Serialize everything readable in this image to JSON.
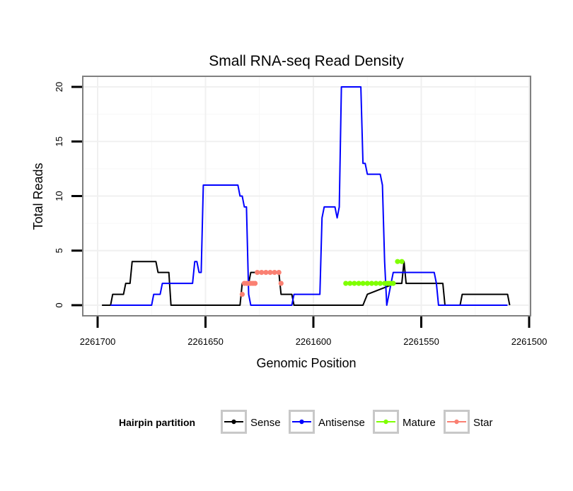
{
  "chart_data": {
    "type": "line",
    "title": "Small RNA-seq Read Density",
    "xlabel": "Genomic Position",
    "ylabel": "Total Reads",
    "xlim": [
      2261700,
      2261500
    ],
    "ylim": [
      0,
      20
    ],
    "x_reversed": true,
    "x_ticks": [
      2261700,
      2261650,
      2261600,
      2261550,
      2261500
    ],
    "x_tick_labels": [
      "2261700",
      "2261650",
      "2261600",
      "2261550",
      "2261500"
    ],
    "y_ticks": [
      0,
      5,
      10,
      15,
      20
    ],
    "y_tick_labels": [
      "0",
      "5",
      "10",
      "15",
      "20"
    ],
    "grid": true,
    "legend": {
      "title": "Hairpin partition",
      "position": "bottom",
      "entries": [
        {
          "name": "Sense",
          "color": "#000000"
        },
        {
          "name": "Antisense",
          "color": "#0000ff"
        },
        {
          "name": "Mature",
          "color": "#7fff00"
        },
        {
          "name": "Star",
          "color": "#fa8072"
        }
      ]
    },
    "series": [
      {
        "name": "Sense",
        "color": "#000000",
        "style": "line",
        "points": [
          [
            2261698,
            0
          ],
          [
            2261694,
            0
          ],
          [
            2261693,
            1
          ],
          [
            2261688,
            1
          ],
          [
            2261687,
            2
          ],
          [
            2261685,
            2
          ],
          [
            2261684,
            4
          ],
          [
            2261673,
            4
          ],
          [
            2261672,
            3
          ],
          [
            2261667,
            3
          ],
          [
            2261666,
            0
          ],
          [
            2261634,
            0
          ],
          [
            2261633,
            2
          ],
          [
            2261630,
            2
          ],
          [
            2261629,
            3
          ],
          [
            2261616,
            3
          ],
          [
            2261615,
            1
          ],
          [
            2261610,
            1
          ],
          [
            2261609,
            0
          ],
          [
            2261577,
            0
          ],
          [
            2261575,
            1
          ],
          [
            2261562,
            2
          ],
          [
            2261559,
            2
          ],
          [
            2261558,
            4
          ],
          [
            2261557,
            2
          ],
          [
            2261540,
            2
          ],
          [
            2261539,
            0
          ],
          [
            2261532,
            0
          ],
          [
            2261531,
            1
          ],
          [
            2261510,
            1
          ],
          [
            2261509,
            0
          ]
        ]
      },
      {
        "name": "Antisense",
        "color": "#0000ff",
        "style": "line",
        "points": [
          [
            2261694,
            0
          ],
          [
            2261675,
            0
          ],
          [
            2261674,
            1
          ],
          [
            2261671,
            1
          ],
          [
            2261670,
            2
          ],
          [
            2261656,
            2
          ],
          [
            2261655,
            4
          ],
          [
            2261654,
            4
          ],
          [
            2261653,
            3
          ],
          [
            2261652,
            3
          ],
          [
            2261651,
            11
          ],
          [
            2261635,
            11
          ],
          [
            2261634,
            10
          ],
          [
            2261633,
            10
          ],
          [
            2261632,
            9
          ],
          [
            2261631,
            9
          ],
          [
            2261630,
            1
          ],
          [
            2261629,
            0
          ],
          [
            2261610,
            0
          ],
          [
            2261609,
            1
          ],
          [
            2261597,
            1
          ],
          [
            2261596,
            8
          ],
          [
            2261595,
            9
          ],
          [
            2261590,
            9
          ],
          [
            2261589,
            8
          ],
          [
            2261588,
            9
          ],
          [
            2261587,
            20
          ],
          [
            2261578,
            20
          ],
          [
            2261577,
            13
          ],
          [
            2261576,
            13
          ],
          [
            2261575,
            12
          ],
          [
            2261569,
            12
          ],
          [
            2261568,
            11
          ],
          [
            2261567,
            4
          ],
          [
            2261566,
            0
          ],
          [
            2261565,
            1
          ],
          [
            2261564,
            2
          ],
          [
            2261563,
            3
          ],
          [
            2261544,
            3
          ],
          [
            2261543,
            2
          ],
          [
            2261542,
            0
          ],
          [
            2261510,
            0
          ]
        ]
      },
      {
        "name": "Mature",
        "color": "#7fff00",
        "style": "points",
        "points": [
          [
            2261585,
            2
          ],
          [
            2261583,
            2
          ],
          [
            2261581,
            2
          ],
          [
            2261579,
            2
          ],
          [
            2261577,
            2
          ],
          [
            2261575,
            2
          ],
          [
            2261573,
            2
          ],
          [
            2261571,
            2
          ],
          [
            2261569,
            2
          ],
          [
            2261567,
            2
          ],
          [
            2261566,
            2
          ],
          [
            2261565,
            2
          ],
          [
            2261564,
            2
          ],
          [
            2261563,
            2
          ],
          [
            2261561,
            4
          ],
          [
            2261559,
            4
          ]
        ]
      },
      {
        "name": "Star",
        "color": "#fa8072",
        "style": "points",
        "points": [
          [
            2261633,
            1
          ],
          [
            2261632,
            2
          ],
          [
            2261631,
            2
          ],
          [
            2261630,
            2
          ],
          [
            2261629,
            2
          ],
          [
            2261628,
            2
          ],
          [
            2261627,
            2
          ],
          [
            2261626,
            3
          ],
          [
            2261624,
            3
          ],
          [
            2261622,
            3
          ],
          [
            2261620,
            3
          ],
          [
            2261618,
            3
          ],
          [
            2261616,
            3
          ],
          [
            2261615,
            2
          ]
        ]
      }
    ]
  }
}
